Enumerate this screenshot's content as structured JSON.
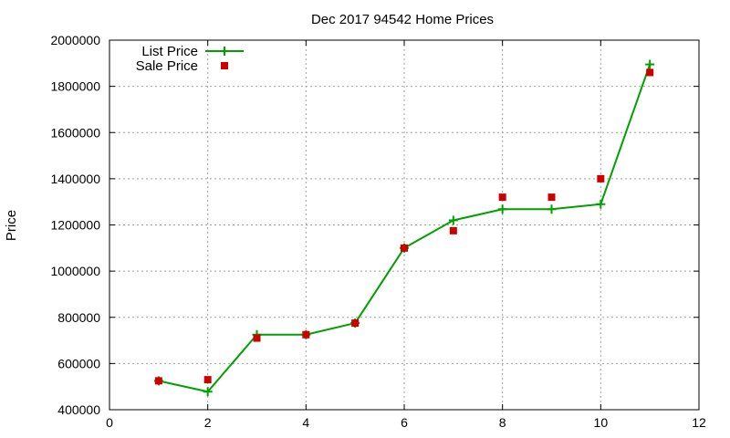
{
  "chart_data": {
    "type": "line",
    "title": "Dec 2017 94542 Home Prices",
    "xlabel": "",
    "ylabel": "Price",
    "xlim": [
      0,
      12
    ],
    "ylim": [
      400000,
      2000000
    ],
    "x_ticks": [
      0,
      2,
      4,
      6,
      8,
      10,
      12
    ],
    "y_ticks": [
      400000,
      600000,
      800000,
      1000000,
      1200000,
      1400000,
      1600000,
      1800000,
      2000000
    ],
    "grid": true,
    "legend_position": "top-left",
    "series": [
      {
        "name": "List Price",
        "style": "line-with-plus-markers",
        "color": "#00a000",
        "x": [
          1,
          2,
          3,
          4,
          5,
          6,
          7,
          8,
          9,
          10,
          11
        ],
        "y": [
          525000,
          478000,
          725000,
          725000,
          775000,
          1100000,
          1220000,
          1268000,
          1268000,
          1290000,
          1895000
        ]
      },
      {
        "name": "Sale Price",
        "style": "square-markers",
        "color": "#cc0000",
        "x": [
          1,
          2,
          3,
          4,
          5,
          6,
          7,
          8,
          9,
          10,
          11
        ],
        "y": [
          525000,
          530000,
          710000,
          725000,
          775000,
          1100000,
          1175000,
          1320000,
          1320000,
          1400000,
          1860000
        ]
      }
    ]
  }
}
